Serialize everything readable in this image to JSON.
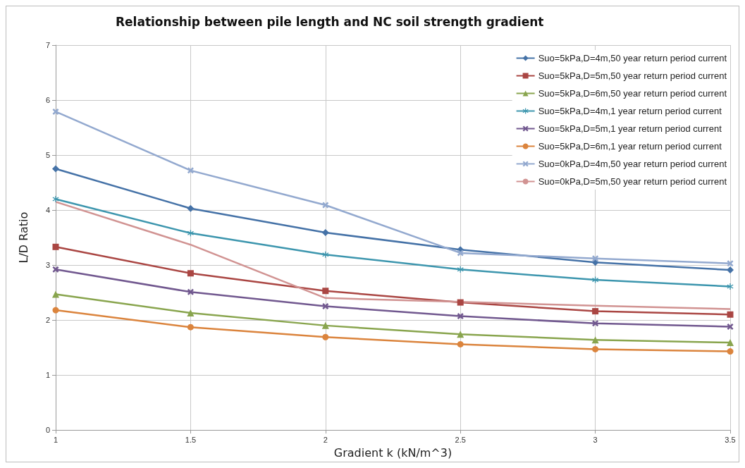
{
  "chart_data": {
    "type": "line",
    "title": "Relationship between pile length and NC soil strength gradient",
    "xlabel": "Gradient k (kN/m^3)",
    "ylabel": "L/D Ratio",
    "x": [
      1,
      1.5,
      2,
      2.5,
      3,
      3.5
    ],
    "xlim": [
      1,
      3.5
    ],
    "xticks": [
      1,
      1.5,
      2,
      2.5,
      3,
      3.5
    ],
    "ylim": [
      0,
      7
    ],
    "yticks": [
      0,
      1,
      2,
      3,
      4,
      5,
      6,
      7
    ],
    "grid": true,
    "legend": "top right",
    "line_style": "solid",
    "series": [
      {
        "name": "Suo=5kPa,D=4m,50 year return period current",
        "color": "#4572a7",
        "marker": "diamond",
        "values": [
          4.75,
          4.03,
          3.59,
          3.28,
          3.05,
          2.91
        ]
      },
      {
        "name": "Suo=5kPa,D=5m,50 year return period current",
        "color": "#aa4643",
        "marker": "square",
        "values": [
          3.33,
          2.85,
          2.53,
          2.32,
          2.16,
          2.1
        ]
      },
      {
        "name": "Suo=5kPa,D=6m,50 year return period current",
        "color": "#89a54e",
        "marker": "triangle",
        "values": [
          2.47,
          2.13,
          1.9,
          1.74,
          1.64,
          1.59
        ]
      },
      {
        "name": "Suo=5kPa,D=4m,1 year return period current",
        "color": "#3d96ae",
        "marker": "star",
        "values": [
          4.2,
          3.58,
          3.19,
          2.92,
          2.73,
          2.61
        ]
      },
      {
        "name": "Suo=5kPa,D=5m,1 year return period current",
        "color": "#71588f",
        "marker": "cross",
        "values": [
          2.92,
          2.51,
          2.25,
          2.07,
          1.94,
          1.88
        ]
      },
      {
        "name": "Suo=5kPa,D=6m,1 year return period current",
        "color": "#db843d",
        "marker": "circle",
        "values": [
          2.18,
          1.87,
          1.69,
          1.56,
          1.47,
          1.43
        ]
      },
      {
        "name": "Suo=0kPa,D=4m,50 year return period current",
        "color": "#93a9cf",
        "marker": "cross",
        "values": [
          5.79,
          4.72,
          4.09,
          3.22,
          3.12,
          3.03
        ]
      },
      {
        "name": "Suo=0kPa,D=5m,50 year return period current",
        "color": "#d19392",
        "marker": "none",
        "values": [
          4.15,
          3.37,
          2.4,
          2.33,
          2.26,
          2.2
        ]
      }
    ]
  }
}
